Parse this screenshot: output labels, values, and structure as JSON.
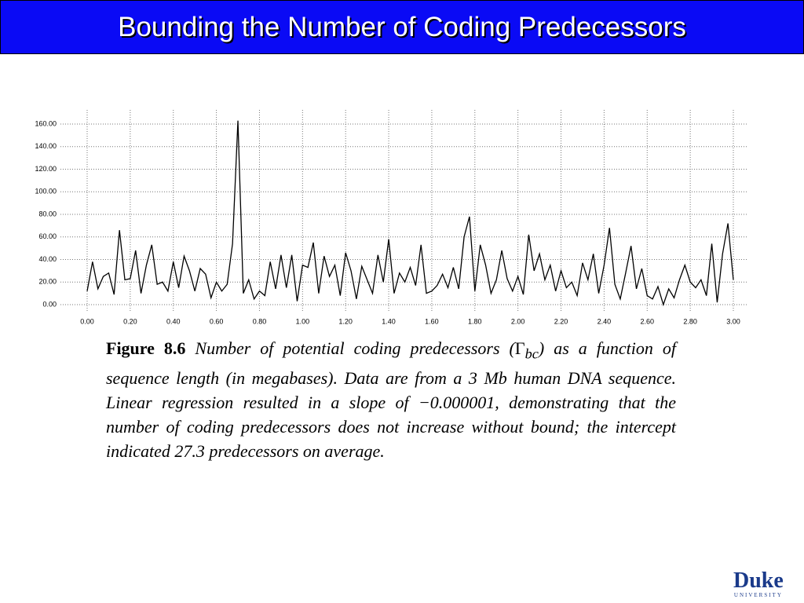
{
  "slide_title": "Bounding the Number of Coding Predecessors",
  "caption": {
    "label": "Figure 8.6",
    "before": "Number of potential coding predecessors (",
    "symbol": "Γ",
    "subscript": "bc",
    "after": ") as a function of sequence length (in megabases). Data are from a 3 Mb human DNA sequence. Linear regression resulted in a slope of −0.000001, demonstrating that the number of coding predecessors does not increase without bound; the intercept indicated 27.3 predecessors on average."
  },
  "logo": {
    "name": "Duke",
    "subtitle": "UNIVERSITY"
  },
  "chart_data": {
    "type": "line",
    "color": "#000000",
    "grid": true,
    "x": [
      0,
      0.025,
      0.05,
      0.075,
      0.1,
      0.125,
      0.15,
      0.175,
      0.2,
      0.225,
      0.25,
      0.275,
      0.3,
      0.325,
      0.35,
      0.375,
      0.4,
      0.425,
      0.45,
      0.475,
      0.5,
      0.525,
      0.55,
      0.575,
      0.6,
      0.625,
      0.65,
      0.675,
      0.7,
      0.725,
      0.75,
      0.775,
      0.8,
      0.825,
      0.85,
      0.875,
      0.9,
      0.925,
      0.95,
      0.975,
      1,
      1.025,
      1.05,
      1.075,
      1.1,
      1.125,
      1.15,
      1.175,
      1.2,
      1.225,
      1.25,
      1.275,
      1.3,
      1.325,
      1.35,
      1.375,
      1.4,
      1.425,
      1.45,
      1.475,
      1.5,
      1.525,
      1.55,
      1.575,
      1.6,
      1.625,
      1.65,
      1.675,
      1.7,
      1.725,
      1.75,
      1.775,
      1.8,
      1.825,
      1.85,
      1.875,
      1.9,
      1.925,
      1.95,
      1.975,
      2,
      2.025,
      2.05,
      2.075,
      2.1,
      2.125,
      2.15,
      2.175,
      2.2,
      2.225,
      2.25,
      2.275,
      2.3,
      2.325,
      2.35,
      2.375,
      2.4,
      2.425,
      2.45,
      2.475,
      2.5,
      2.525,
      2.55,
      2.575,
      2.6,
      2.625,
      2.65,
      2.675,
      2.7,
      2.725,
      2.75,
      2.775,
      2.8,
      2.825,
      2.85,
      2.875,
      2.9,
      2.925,
      2.95,
      2.975,
      3
    ],
    "values": [
      12,
      38,
      14,
      25,
      28,
      9,
      66,
      22,
      23,
      48,
      10,
      35,
      53,
      18,
      20,
      12,
      38,
      15,
      43,
      30,
      12,
      32,
      27,
      6,
      20,
      12,
      18,
      54,
      163,
      10,
      22,
      5,
      12,
      8,
      38,
      14,
      44,
      15,
      44,
      3,
      35,
      33,
      55,
      10,
      43,
      25,
      35,
      8,
      46,
      30,
      5,
      34,
      22,
      10,
      44,
      20,
      58,
      10,
      28,
      20,
      33,
      17,
      53,
      10,
      12,
      17,
      27,
      15,
      33,
      14,
      60,
      78,
      12,
      53,
      35,
      10,
      22,
      48,
      23,
      12,
      25,
      9,
      62,
      30,
      45,
      22,
      35,
      12,
      30,
      15,
      20,
      8,
      37,
      22,
      45,
      10,
      35,
      68,
      18,
      5,
      28,
      52,
      14,
      32,
      8,
      5,
      16,
      0,
      14,
      6,
      22,
      35,
      20,
      15,
      22,
      8,
      54,
      2,
      45,
      72,
      22
    ],
    "xlim": [
      0,
      3
    ],
    "ylim": [
      0,
      160
    ],
    "xticks": [
      {
        "value": 0,
        "label": "0.00"
      },
      {
        "value": 0.2,
        "label": "0.20"
      },
      {
        "value": 0.4,
        "label": "0.40"
      },
      {
        "value": 0.6,
        "label": "0.60"
      },
      {
        "value": 0.8,
        "label": "0.80"
      },
      {
        "value": 1,
        "label": "1.00"
      },
      {
        "value": 1.2,
        "label": "1.20"
      },
      {
        "value": 1.4,
        "label": "1.40"
      },
      {
        "value": 1.6,
        "label": "1.60"
      },
      {
        "value": 1.8,
        "label": "1.80"
      },
      {
        "value": 2,
        "label": "2.00"
      },
      {
        "value": 2.2,
        "label": "2.20"
      },
      {
        "value": 2.4,
        "label": "2.40"
      },
      {
        "value": 2.6,
        "label": "2.60"
      },
      {
        "value": 2.8,
        "label": "2.80"
      },
      {
        "value": 3,
        "label": "3.00"
      }
    ],
    "yticks": [
      {
        "value": 0,
        "label": "0.00"
      },
      {
        "value": 20,
        "label": "20.00"
      },
      {
        "value": 40,
        "label": "40.00"
      },
      {
        "value": 60,
        "label": "60.00"
      },
      {
        "value": 80,
        "label": "80.00"
      },
      {
        "value": 100,
        "label": "100.00"
      },
      {
        "value": 120,
        "label": "120.00"
      },
      {
        "value": 140,
        "label": "140.00"
      },
      {
        "value": 160,
        "label": "160.00"
      }
    ]
  }
}
